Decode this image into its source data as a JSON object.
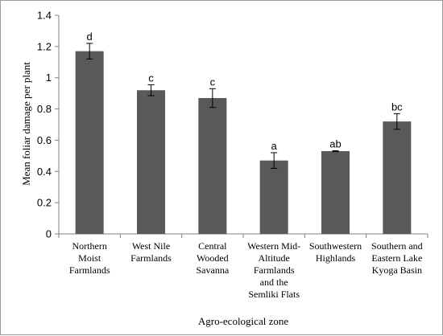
{
  "chart_data": {
    "type": "bar",
    "xlabel": "Agro-ecological zone",
    "ylabel": "Mean foliar damage per plant",
    "ylim": [
      0,
      1.4
    ],
    "yticks": [
      "0",
      "0.2",
      "0.4",
      "0.6",
      "0.8",
      "1",
      "1.2",
      "1.4"
    ],
    "grid": false,
    "categories": [
      [
        "Northern",
        "Moist",
        "Farmlands"
      ],
      [
        "West Nile",
        "Farmlands"
      ],
      [
        "Central",
        "Wooded",
        "Savanna"
      ],
      [
        "Western Mid-",
        "Altitude",
        "Farmlands",
        "and the",
        "Semliki Flats"
      ],
      [
        "Southwestern",
        "Highlands"
      ],
      [
        "Southern and",
        "Eastern Lake",
        "Kyoga Basin"
      ]
    ],
    "values": [
      1.17,
      0.92,
      0.87,
      0.47,
      0.53,
      0.72
    ],
    "errors": [
      0.05,
      0.035,
      0.06,
      0.05,
      0.003,
      0.05
    ],
    "labels": [
      "d",
      "c",
      "c",
      "a",
      "ab",
      "bc"
    ],
    "bar_color": "#595959"
  }
}
